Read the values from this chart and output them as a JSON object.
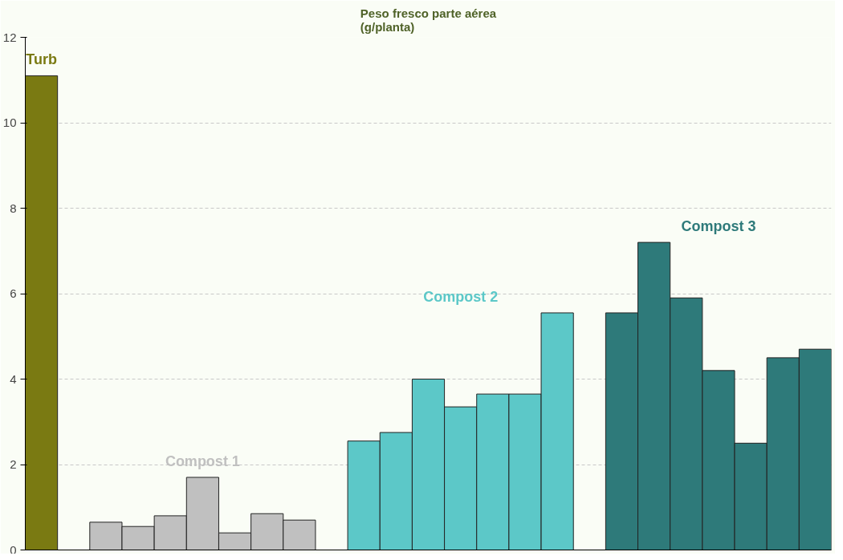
{
  "chart_data": {
    "type": "bar",
    "title": "Peso fresco parte aérea\n(g/planta)",
    "categories": [
      null,
      null,
      null,
      null,
      null,
      null,
      null,
      null,
      null,
      null,
      null,
      null,
      null,
      null,
      null,
      null,
      null,
      null,
      null,
      null,
      null,
      null,
      null,
      null,
      null
    ],
    "series": [
      {
        "name": "Turb",
        "color": "#7a7a12",
        "values": [
          11.1,
          null,
          null,
          null,
          null,
          null,
          null,
          null,
          null,
          null,
          null,
          null,
          null,
          null,
          null,
          null,
          null,
          null,
          null,
          null,
          null,
          null,
          null,
          null,
          null
        ]
      },
      {
        "name": "Compost 1",
        "color": "#c0c0c0",
        "values": [
          null,
          null,
          0.65,
          0.55,
          0.8,
          1.7,
          0.4,
          0.85,
          0.7,
          null,
          null,
          null,
          null,
          null,
          null,
          null,
          null,
          null,
          null,
          null,
          null,
          null,
          null,
          null,
          null
        ]
      },
      {
        "name": "Compost 2",
        "color": "#5cc8c8",
        "values": [
          null,
          null,
          null,
          null,
          null,
          null,
          null,
          null,
          null,
          null,
          2.55,
          2.75,
          4.0,
          3.35,
          3.65,
          3.65,
          5.55,
          null,
          null,
          null,
          null,
          null,
          null,
          null,
          null
        ]
      },
      {
        "name": "Compost 3",
        "color": "#2e7a7a",
        "values": [
          null,
          null,
          null,
          null,
          null,
          null,
          null,
          null,
          null,
          null,
          null,
          null,
          null,
          null,
          null,
          null,
          null,
          null,
          5.55,
          7.2,
          5.9,
          4.2,
          2.5,
          4.5,
          4.7
        ]
      }
    ],
    "ylim": [
      0,
      12
    ],
    "yticks": [
      0,
      2,
      4,
      6,
      8,
      10,
      12
    ],
    "grid": "y",
    "tick_labels": "y"
  }
}
